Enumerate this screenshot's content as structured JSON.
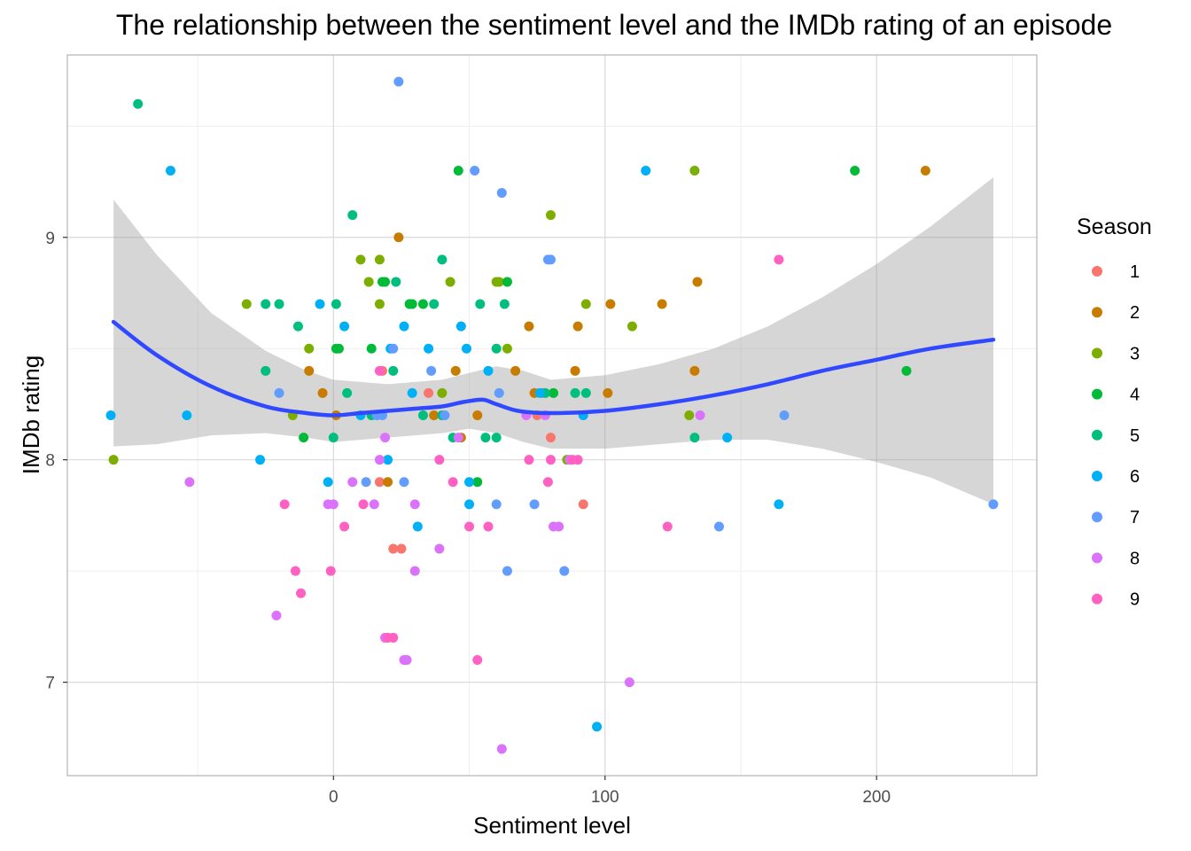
{
  "chart_data": {
    "type": "scatter",
    "title": "The relationship between the sentiment level and the IMDb rating of an episode",
    "xlabel": "Sentiment level",
    "ylabel": "IMDb rating",
    "xlim": [
      -98,
      259
    ],
    "ylim": [
      6.58,
      9.82
    ],
    "x_ticks": [
      {
        "value": 0,
        "label": "0"
      },
      {
        "value": 100,
        "label": "100"
      },
      {
        "value": 200,
        "label": "200"
      }
    ],
    "y_ticks": [
      {
        "value": 7,
        "label": "7"
      },
      {
        "value": 8,
        "label": "8"
      },
      {
        "value": 9,
        "label": "9"
      }
    ],
    "grid": true,
    "legend": {
      "title": "Season",
      "position": "right"
    },
    "smooth": {
      "method": "loess",
      "color": "#3049ff",
      "band_color": "#999999",
      "fit": [
        [
          -81,
          8.62
        ],
        [
          -65,
          8.47
        ],
        [
          -45,
          8.33
        ],
        [
          -25,
          8.24
        ],
        [
          -10,
          8.21
        ],
        [
          0,
          8.2
        ],
        [
          10,
          8.21
        ],
        [
          20,
          8.22
        ],
        [
          30,
          8.23
        ],
        [
          40,
          8.24
        ],
        [
          48,
          8.26
        ],
        [
          55,
          8.27
        ],
        [
          60,
          8.25
        ],
        [
          68,
          8.22
        ],
        [
          80,
          8.21
        ],
        [
          100,
          8.22
        ],
        [
          120,
          8.25
        ],
        [
          140,
          8.29
        ],
        [
          160,
          8.34
        ],
        [
          180,
          8.4
        ],
        [
          200,
          8.45
        ],
        [
          220,
          8.5
        ],
        [
          243,
          8.54
        ]
      ],
      "upper": [
        [
          -81,
          9.17
        ],
        [
          -65,
          8.92
        ],
        [
          -45,
          8.66
        ],
        [
          -25,
          8.49
        ],
        [
          -10,
          8.4
        ],
        [
          0,
          8.36
        ],
        [
          10,
          8.35
        ],
        [
          20,
          8.34
        ],
        [
          30,
          8.35
        ],
        [
          40,
          8.36
        ],
        [
          50,
          8.39
        ],
        [
          60,
          8.42
        ],
        [
          70,
          8.4
        ],
        [
          80,
          8.36
        ],
        [
          100,
          8.38
        ],
        [
          120,
          8.43
        ],
        [
          140,
          8.5
        ],
        [
          160,
          8.6
        ],
        [
          180,
          8.73
        ],
        [
          200,
          8.88
        ],
        [
          220,
          9.05
        ],
        [
          243,
          9.27
        ]
      ],
      "lower": [
        [
          -81,
          8.06
        ],
        [
          -65,
          8.07
        ],
        [
          -45,
          8.11
        ],
        [
          -25,
          8.12
        ],
        [
          -10,
          8.1
        ],
        [
          0,
          8.08
        ],
        [
          10,
          8.09
        ],
        [
          20,
          8.1
        ],
        [
          30,
          8.11
        ],
        [
          40,
          8.12
        ],
        [
          50,
          8.14
        ],
        [
          60,
          8.12
        ],
        [
          70,
          8.08
        ],
        [
          80,
          8.05
        ],
        [
          100,
          8.05
        ],
        [
          120,
          8.07
        ],
        [
          140,
          8.09
        ],
        [
          160,
          8.09
        ],
        [
          180,
          8.05
        ],
        [
          200,
          7.99
        ],
        [
          220,
          7.92
        ],
        [
          243,
          7.8
        ]
      ]
    },
    "series": [
      {
        "name": "1",
        "color": "#F8766D",
        "points": [
          [
            22,
            7.6
          ],
          [
            25,
            7.6
          ],
          [
            35,
            8.3
          ],
          [
            18,
            8.4
          ],
          [
            80,
            8.1
          ],
          [
            92,
            7.8
          ],
          [
            17,
            7.9
          ],
          [
            75,
            8.2
          ],
          [
            77,
            8.3
          ]
        ]
      },
      {
        "name": "2",
        "color": "#C77C00",
        "points": [
          [
            24,
            9.0
          ],
          [
            45,
            8.4
          ],
          [
            37,
            8.2
          ],
          [
            47,
            8.1
          ],
          [
            53,
            8.2
          ],
          [
            67,
            8.4
          ],
          [
            72,
            8.6
          ],
          [
            74,
            8.3
          ],
          [
            89,
            8.4
          ],
          [
            90,
            8.6
          ],
          [
            101,
            8.3
          ],
          [
            102,
            8.7
          ],
          [
            121,
            8.7
          ],
          [
            133,
            8.4
          ],
          [
            134,
            8.8
          ],
          [
            218,
            9.3
          ],
          [
            -9,
            8.4
          ],
          [
            -4,
            8.3
          ],
          [
            1,
            8.2
          ],
          [
            20,
            7.9
          ]
        ]
      },
      {
        "name": "3",
        "color": "#7CAE00",
        "points": [
          [
            -81,
            8.0
          ],
          [
            -32,
            8.7
          ],
          [
            -9,
            8.5
          ],
          [
            -15,
            8.2
          ],
          [
            10,
            8.9
          ],
          [
            13,
            8.8
          ],
          [
            17,
            8.9
          ],
          [
            17,
            8.7
          ],
          [
            40,
            8.3
          ],
          [
            43,
            8.8
          ],
          [
            60,
            8.8
          ],
          [
            61,
            8.8
          ],
          [
            64,
            8.5
          ],
          [
            80,
            9.1
          ],
          [
            86,
            8.0
          ],
          [
            93,
            8.7
          ],
          [
            110,
            8.6
          ],
          [
            131,
            8.2
          ],
          [
            133,
            9.3
          ]
        ]
      },
      {
        "name": "4",
        "color": "#00BA38",
        "points": [
          [
            46,
            9.3
          ],
          [
            -11,
            8.1
          ],
          [
            1,
            8.5
          ],
          [
            2,
            8.5
          ],
          [
            14,
            8.5
          ],
          [
            18,
            8.8
          ],
          [
            19,
            8.8
          ],
          [
            28,
            8.7
          ],
          [
            29,
            8.7
          ],
          [
            33,
            8.7
          ],
          [
            53,
            7.9
          ],
          [
            64,
            8.8
          ],
          [
            81,
            8.3
          ],
          [
            192,
            9.3
          ],
          [
            211,
            8.4
          ]
        ]
      },
      {
        "name": "5",
        "color": "#00BF7D",
        "points": [
          [
            -72,
            9.6
          ],
          [
            -25,
            8.4
          ],
          [
            -25,
            8.7
          ],
          [
            -20,
            8.7
          ],
          [
            -13,
            8.6
          ],
          [
            0,
            8.1
          ],
          [
            1,
            8.7
          ],
          [
            5,
            8.3
          ],
          [
            7,
            9.1
          ],
          [
            14,
            8.2
          ],
          [
            22,
            8.4
          ],
          [
            23,
            8.8
          ],
          [
            33,
            8.2
          ],
          [
            37,
            8.7
          ],
          [
            40,
            8.9
          ],
          [
            40,
            8.2
          ],
          [
            44,
            8.1
          ],
          [
            54,
            8.7
          ],
          [
            56,
            8.1
          ],
          [
            60,
            8.1
          ],
          [
            60,
            8.5
          ],
          [
            63,
            8.7
          ],
          [
            78,
            8.3
          ],
          [
            89,
            8.3
          ],
          [
            93,
            8.3
          ],
          [
            133,
            8.1
          ]
        ]
      },
      {
        "name": "6",
        "color": "#00B0F6",
        "points": [
          [
            -60,
            9.3
          ],
          [
            -82,
            8.2
          ],
          [
            -54,
            8.2
          ],
          [
            -27,
            8.0
          ],
          [
            -5,
            8.7
          ],
          [
            -2,
            7.9
          ],
          [
            4,
            8.6
          ],
          [
            10,
            8.2
          ],
          [
            20,
            8.0
          ],
          [
            21,
            8.5
          ],
          [
            26,
            8.6
          ],
          [
            29,
            8.3
          ],
          [
            31,
            7.7
          ],
          [
            35,
            8.5
          ],
          [
            47,
            8.6
          ],
          [
            49,
            8.5
          ],
          [
            50,
            7.8
          ],
          [
            50,
            7.9
          ],
          [
            57,
            8.4
          ],
          [
            76,
            8.3
          ],
          [
            92,
            8.2
          ],
          [
            97,
            6.8
          ],
          [
            115,
            9.3
          ],
          [
            145,
            8.1
          ],
          [
            164,
            7.8
          ]
        ]
      },
      {
        "name": "7",
        "color": "#619CFF",
        "points": [
          [
            24,
            9.7
          ],
          [
            52,
            9.3
          ],
          [
            62,
            9.2
          ],
          [
            -20,
            8.3
          ],
          [
            12,
            7.9
          ],
          [
            16,
            8.2
          ],
          [
            18,
            8.2
          ],
          [
            22,
            8.5
          ],
          [
            26,
            7.9
          ],
          [
            36,
            8.4
          ],
          [
            41,
            8.2
          ],
          [
            60,
            7.8
          ],
          [
            61,
            8.3
          ],
          [
            64,
            7.5
          ],
          [
            74,
            7.8
          ],
          [
            79,
            8.9
          ],
          [
            80,
            8.9
          ],
          [
            85,
            7.5
          ],
          [
            142,
            7.7
          ],
          [
            166,
            8.2
          ],
          [
            243,
            7.8
          ]
        ]
      },
      {
        "name": "8",
        "color": "#DB72FB",
        "points": [
          [
            -53,
            7.9
          ],
          [
            -21,
            7.3
          ],
          [
            -2,
            7.8
          ],
          [
            0,
            7.8
          ],
          [
            7,
            7.9
          ],
          [
            15,
            7.8
          ],
          [
            17,
            8.0
          ],
          [
            19,
            8.1
          ],
          [
            19,
            7.2
          ],
          [
            26,
            7.1
          ],
          [
            27,
            7.1
          ],
          [
            30,
            7.5
          ],
          [
            30,
            7.8
          ],
          [
            39,
            7.6
          ],
          [
            46,
            8.1
          ],
          [
            62,
            6.7
          ],
          [
            71,
            8.2
          ],
          [
            78,
            8.2
          ],
          [
            81,
            7.7
          ],
          [
            83,
            7.7
          ],
          [
            87,
            8.0
          ],
          [
            109,
            7.0
          ],
          [
            135,
            8.2
          ]
        ]
      },
      {
        "name": "9",
        "color": "#FF61C3",
        "points": [
          [
            -18,
            7.8
          ],
          [
            -14,
            7.5
          ],
          [
            -12,
            7.4
          ],
          [
            -1,
            7.5
          ],
          [
            4,
            7.7
          ],
          [
            11,
            7.8
          ],
          [
            17,
            8.4
          ],
          [
            20,
            7.2
          ],
          [
            22,
            7.2
          ],
          [
            39,
            8.0
          ],
          [
            44,
            7.9
          ],
          [
            50,
            7.7
          ],
          [
            53,
            7.1
          ],
          [
            57,
            7.7
          ],
          [
            72,
            8.0
          ],
          [
            79,
            7.9
          ],
          [
            80,
            8.0
          ],
          [
            88,
            8.0
          ],
          [
            90,
            8.0
          ],
          [
            123,
            7.7
          ],
          [
            164,
            8.9
          ]
        ]
      }
    ]
  }
}
